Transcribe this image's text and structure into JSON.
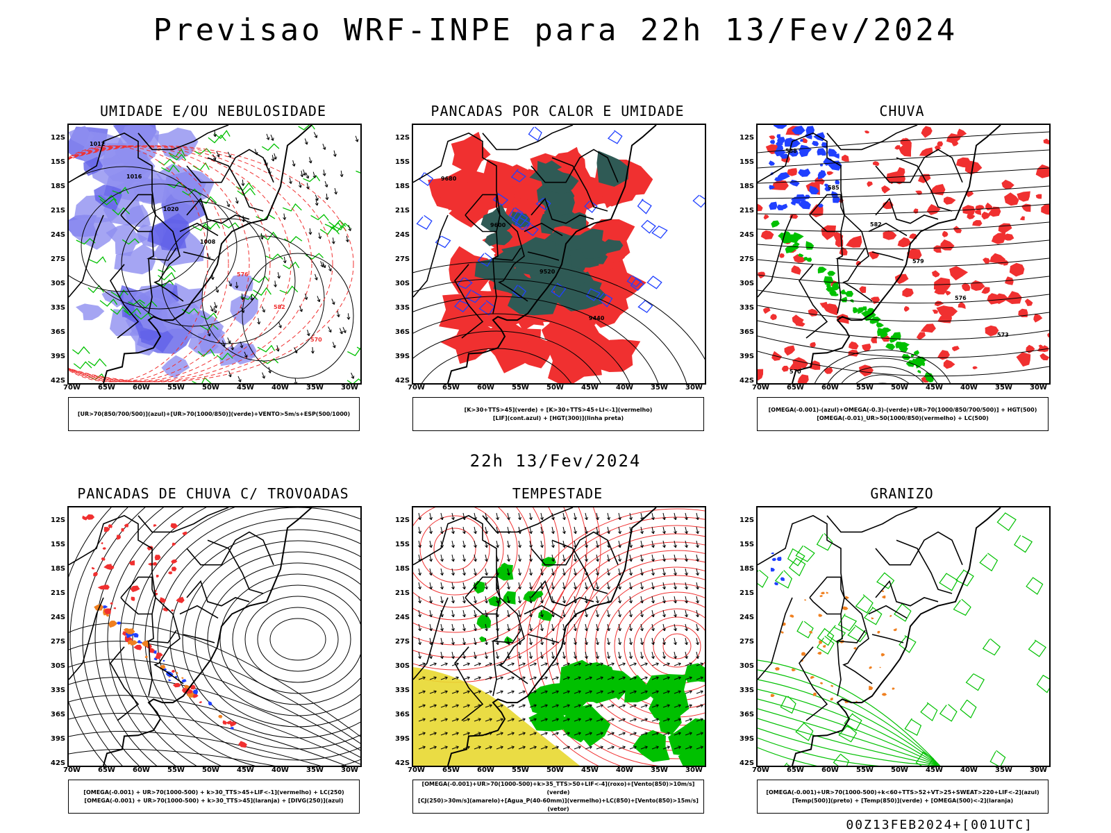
{
  "title": "Previsao WRF-INPE  para 22h 13/Fev/2024",
  "middle_label": "22h 13/Fev/2024",
  "footer": "00Z13FEB2024+[001UTC]",
  "lat_labels": [
    "12S",
    "15S",
    "18S",
    "21S",
    "24S",
    "27S",
    "30S",
    "33S",
    "36S",
    "39S",
    "42S"
  ],
  "lon_labels": [
    "70W",
    "65W",
    "60W",
    "55W",
    "50W",
    "45W",
    "40W",
    "35W",
    "30W"
  ],
  "panels": [
    {
      "title": "UMIDADE E/OU NEBULOSIDADE",
      "legend": [
        "[UR>70(850/700/500)](azul)+[UR>70(1000/850)](verde)+VENTO>5m/s+ESP(500/1000)"
      ],
      "contour_labels": [
        "1012",
        "1016",
        "1020",
        "1008",
        "576",
        "582",
        "570"
      ]
    },
    {
      "title": "PANCADAS POR CALOR E UMIDADE",
      "legend": [
        "[K>30+TTS>45](verde) + [K>30+TTS>45+LI<-1](vermelho)",
        "[LIF](cont.azul) + [HGT(300)](linha preta)"
      ],
      "contour_labels": [
        "9680",
        "9600",
        "9520",
        "9440"
      ]
    },
    {
      "title": "CHUVA",
      "legend": [
        "[OMEGA(-0.001)-(azul)+OMEGA(-0.3)-(verde)+UR>70(1000/850/700/500)] + HGT(500)",
        "[OMEGA(-0.01)_UR>50(1000/850)(vermelho) + LC(500)"
      ],
      "contour_labels": [
        "588",
        "585",
        "582",
        "579",
        "576",
        "573",
        "570"
      ]
    },
    {
      "title": "PANCADAS DE CHUVA C/ TROVOADAS",
      "legend": [
        "[OMEGA(-0.001) + UR>70(1000-500) + k>30_TTS>45+LIF<-1](vermelho) + LC(250)",
        "[OMEGA(-0.001) + UR>70(1000-500) + k>30_TTS>45](laranja) + [DIVG(250)](azul)"
      ],
      "contour_labels": []
    },
    {
      "title": "TEMPESTADE",
      "legend": [
        "[OMEGA(-0.001)+UR>70(1000-500)+k>35_TTS>50+LIF<-4](roxo)+[Vento(850)>10m/s](verde)",
        "[CJ(250)>30m/s](amarelo)+[Agua_P(40-60mm)](vermelho)+LC(850)+[Vento(850)>15m/s](vetor)"
      ],
      "contour_labels": []
    },
    {
      "title": "GRANIZO",
      "legend": [
        "[OMEGA(-0.001)+UR>70(1000-500)+k<60+TTS>52+VT>25+SWEAT>220+LIF<-2](azul)",
        "[Temp(500)](preto) + [Temp(850)](verde) + [OMEGA(500)<-2](laranja)"
      ],
      "contour_labels": []
    }
  ],
  "colors": {
    "coast": "#000000",
    "blue_fill": "#8f8ff0",
    "blue_deep": "#6262e8",
    "green": "#00c000",
    "red": "#f03030",
    "dark_teal": "#2f5a55",
    "yellow": "#e8d830",
    "orange": "#f08020",
    "blue": "#2040ff"
  }
}
